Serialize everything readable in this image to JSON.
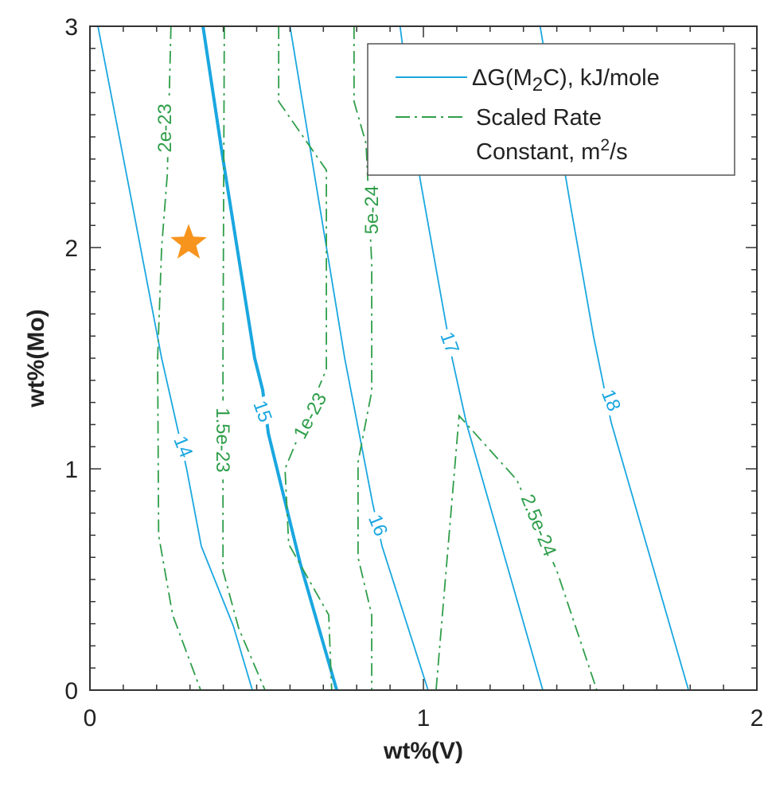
{
  "chart_data": {
    "type": "line",
    "subtype": "contour",
    "xlabel": "wt%(V)",
    "ylabel": "wt%(Mo)",
    "xlim": [
      0,
      2
    ],
    "ylim": [
      0,
      3
    ],
    "xticks": [
      "0",
      "1",
      "2"
    ],
    "yticks": [
      "0",
      "1",
      "2",
      "3"
    ],
    "grid": false,
    "legend": {
      "placement": "top-right",
      "entries": [
        {
          "label_prefix": "ΔG(M",
          "label_sub": "2",
          "label_suffix": "C), kJ/mole",
          "style": "solid",
          "color": "#1aa7e0"
        },
        {
          "label_line1": "Scaled Rate",
          "label_line2_prefix": "Constant, m",
          "label_sup": "2",
          "label_line2_suffix": "/s",
          "style": "dash-dot",
          "color": "#2f9e4a"
        }
      ]
    },
    "series": [
      {
        "name": "dG-14",
        "group": "dG",
        "label": "14",
        "label_at": [
          0.28,
          1.1
        ],
        "points": [
          [
            0.024,
            3
          ],
          [
            0.12,
            2.25
          ],
          [
            0.215,
            1.5
          ],
          [
            0.29,
            1.0
          ],
          [
            0.334,
            0.65
          ],
          [
            0.43,
            0.29
          ],
          [
            0.487,
            0
          ]
        ]
      },
      {
        "name": "dG-15",
        "group": "dG",
        "label": "15",
        "emphasis": true,
        "label_at": [
          0.518,
          1.26
        ],
        "points": [
          [
            0.339,
            3
          ],
          [
            0.399,
            2.4
          ],
          [
            0.494,
            1.5
          ],
          [
            0.518,
            1.356
          ],
          [
            0.535,
            1.16
          ],
          [
            0.63,
            0.576
          ],
          [
            0.74,
            0
          ]
        ]
      },
      {
        "name": "dG-16",
        "group": "dG",
        "label": "16",
        "label_at": [
          0.864,
          0.745
        ],
        "points": [
          [
            0.6,
            3
          ],
          [
            0.764,
            1.5
          ],
          [
            0.847,
            0.85
          ],
          [
            0.876,
            0.65
          ],
          [
            1.014,
            0
          ]
        ]
      },
      {
        "name": "dG-17",
        "group": "dG",
        "label": "17",
        "label_at": [
          1.079,
          1.57
        ],
        "points": [
          [
            0.93,
            3
          ],
          [
            0.99,
            2.31
          ],
          [
            1.086,
            1.5
          ],
          [
            1.13,
            1.2
          ],
          [
            1.358,
            0
          ]
        ]
      },
      {
        "name": "dG-18",
        "group": "dG",
        "label": "18",
        "label_at": [
          1.563,
          1.31
        ],
        "points": [
          [
            1.35,
            3
          ],
          [
            1.44,
            2.2
          ],
          [
            1.51,
            1.6
          ],
          [
            1.563,
            1.21
          ],
          [
            1.68,
            0.6
          ],
          [
            1.795,
            0
          ]
        ]
      },
      {
        "name": "rate-2e-23",
        "group": "rate",
        "label": "2e-23",
        "label_at": [
          0.224,
          2.54
        ],
        "points": [
          [
            0.243,
            3
          ],
          [
            0.232,
            2.33
          ],
          [
            0.215,
            2.0
          ],
          [
            0.203,
            1.5
          ],
          [
            0.206,
            0.7
          ],
          [
            0.248,
            0.34
          ],
          [
            0.332,
            0
          ]
        ]
      },
      {
        "name": "rate-1.5e-23",
        "group": "rate",
        "label": "1.5e-23",
        "label_at": [
          0.399,
          1.13
        ],
        "points": [
          [
            0.403,
            3
          ],
          [
            0.399,
            1.5
          ],
          [
            0.399,
            0.54
          ],
          [
            0.446,
            0.28
          ],
          [
            0.525,
            0
          ]
        ]
      },
      {
        "name": "rate-1e-23",
        "group": "rate",
        "label": "1e-23",
        "label_at": [
          0.66,
          1.24
        ],
        "points": [
          [
            0.566,
            3
          ],
          [
            0.566,
            2.66
          ],
          [
            0.709,
            2.35
          ],
          [
            0.709,
            1.45
          ],
          [
            0.585,
            1.0
          ],
          [
            0.596,
            0.66
          ],
          [
            0.716,
            0.34
          ],
          [
            0.725,
            0
          ]
        ]
      },
      {
        "name": "rate-5e-24",
        "group": "rate",
        "label": "5e-24",
        "label_at": [
          0.845,
          2.17
        ],
        "points": [
          [
            0.792,
            3
          ],
          [
            0.792,
            2.66
          ],
          [
            0.828,
            2.47
          ],
          [
            0.845,
            1.93
          ],
          [
            0.845,
            1.35
          ],
          [
            0.804,
            1.03
          ],
          [
            0.804,
            0.6
          ],
          [
            0.845,
            0.34
          ],
          [
            0.845,
            0
          ]
        ]
      },
      {
        "name": "rate-2.5e-24",
        "group": "rate",
        "label": "2.5e-24",
        "label_at": [
          1.346,
          0.745
        ],
        "points": [
          [
            1.038,
            0
          ],
          [
            1.107,
            1.24
          ],
          [
            1.28,
            0.95
          ],
          [
            1.4,
            0.54
          ],
          [
            1.52,
            0
          ]
        ]
      }
    ],
    "marker": {
      "name": "star",
      "x": 0.296,
      "y": 2.02,
      "color": "#f7941d"
    }
  },
  "colors": {
    "dG": "#1aa7e0",
    "rate": "#2f9e4a",
    "axis": "#333333"
  }
}
